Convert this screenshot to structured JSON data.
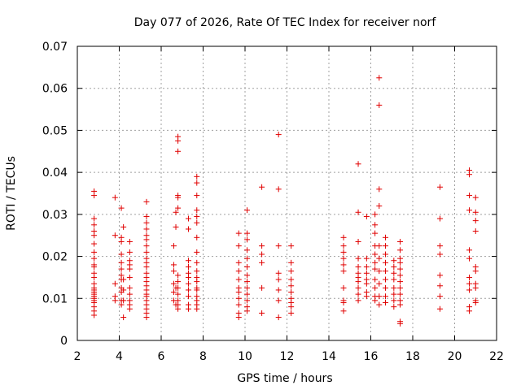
{
  "chart_data": {
    "type": "scatter",
    "title": "Day 077 of 2026, Rate Of TEC Index for receiver norf",
    "xlabel": "GPS time / hours",
    "ylabel": "ROTI / TECUs",
    "xlim": [
      2,
      22
    ],
    "ylim": [
      0,
      0.07
    ],
    "xticks": [
      2,
      4,
      6,
      8,
      10,
      12,
      14,
      16,
      18,
      20,
      22
    ],
    "yticks": [
      0,
      0.01,
      0.02,
      0.03,
      0.04,
      0.05,
      0.06,
      0.07
    ],
    "ytick_labels": [
      "0",
      "0.01",
      "0.02",
      "0.03",
      "0.04",
      "0.05",
      "0.06",
      "0.07"
    ],
    "grid": true,
    "marker": "plus",
    "color": "#e00000",
    "series": [
      {
        "name": "ROTI",
        "points": [
          [
            2.8,
            0.0355
          ],
          [
            2.8,
            0.0345
          ],
          [
            2.8,
            0.029
          ],
          [
            2.8,
            0.0275
          ],
          [
            2.8,
            0.026
          ],
          [
            2.8,
            0.025
          ],
          [
            2.8,
            0.023
          ],
          [
            2.8,
            0.021
          ],
          [
            2.8,
            0.0195
          ],
          [
            2.8,
            0.018
          ],
          [
            2.8,
            0.0175
          ],
          [
            2.8,
            0.016
          ],
          [
            2.8,
            0.015
          ],
          [
            2.8,
            0.0135
          ],
          [
            2.8,
            0.0125
          ],
          [
            2.8,
            0.012
          ],
          [
            2.8,
            0.0115
          ],
          [
            2.8,
            0.011
          ],
          [
            2.8,
            0.0105
          ],
          [
            2.8,
            0.01
          ],
          [
            2.8,
            0.0095
          ],
          [
            2.8,
            0.009
          ],
          [
            2.8,
            0.008
          ],
          [
            2.8,
            0.007
          ],
          [
            2.8,
            0.006
          ],
          [
            3.8,
            0.034
          ],
          [
            3.8,
            0.025
          ],
          [
            3.8,
            0.0135
          ],
          [
            3.8,
            0.0105
          ],
          [
            3.8,
            0.0095
          ],
          [
            4.1,
            0.0315
          ],
          [
            4.1,
            0.0245
          ],
          [
            4.1,
            0.0235
          ],
          [
            4.1,
            0.0205
          ],
          [
            4.1,
            0.0185
          ],
          [
            4.1,
            0.017
          ],
          [
            4.1,
            0.0155
          ],
          [
            4.1,
            0.0145
          ],
          [
            4.1,
            0.0125
          ],
          [
            4.1,
            0.0115
          ],
          [
            4.1,
            0.0095
          ],
          [
            4.1,
            0.0085
          ],
          [
            4.2,
            0.027
          ],
          [
            4.2,
            0.0145
          ],
          [
            4.2,
            0.012
          ],
          [
            4.2,
            0.0095
          ],
          [
            4.2,
            0.0055
          ],
          [
            4.5,
            0.0235
          ],
          [
            4.5,
            0.021
          ],
          [
            4.5,
            0.019
          ],
          [
            4.5,
            0.018
          ],
          [
            4.5,
            0.017
          ],
          [
            4.5,
            0.015
          ],
          [
            4.5,
            0.0125
          ],
          [
            4.5,
            0.011
          ],
          [
            4.5,
            0.0095
          ],
          [
            4.5,
            0.0085
          ],
          [
            4.5,
            0.0075
          ],
          [
            5.3,
            0.033
          ],
          [
            5.3,
            0.0295
          ],
          [
            5.3,
            0.028
          ],
          [
            5.3,
            0.0265
          ],
          [
            5.3,
            0.025
          ],
          [
            5.3,
            0.024
          ],
          [
            5.3,
            0.0225
          ],
          [
            5.3,
            0.021
          ],
          [
            5.3,
            0.0195
          ],
          [
            5.3,
            0.0185
          ],
          [
            5.3,
            0.0175
          ],
          [
            5.3,
            0.016
          ],
          [
            5.3,
            0.015
          ],
          [
            5.3,
            0.014
          ],
          [
            5.3,
            0.013
          ],
          [
            5.3,
            0.012
          ],
          [
            5.3,
            0.011
          ],
          [
            5.3,
            0.0105
          ],
          [
            5.3,
            0.0095
          ],
          [
            5.3,
            0.0085
          ],
          [
            5.3,
            0.0075
          ],
          [
            5.3,
            0.0065
          ],
          [
            5.3,
            0.0055
          ],
          [
            6.6,
            0.0225
          ],
          [
            6.6,
            0.018
          ],
          [
            6.6,
            0.0165
          ],
          [
            6.6,
            0.0135
          ],
          [
            6.6,
            0.0115
          ],
          [
            6.6,
            0.0095
          ],
          [
            6.7,
            0.0305
          ],
          [
            6.7,
            0.027
          ],
          [
            6.7,
            0.0125
          ],
          [
            6.7,
            0.0085
          ],
          [
            6.8,
            0.0485
          ],
          [
            6.8,
            0.0475
          ],
          [
            6.8,
            0.045
          ],
          [
            6.8,
            0.0345
          ],
          [
            6.8,
            0.034
          ],
          [
            6.8,
            0.0315
          ],
          [
            6.8,
            0.0155
          ],
          [
            6.8,
            0.014
          ],
          [
            6.8,
            0.0125
          ],
          [
            6.8,
            0.011
          ],
          [
            6.8,
            0.0095
          ],
          [
            6.8,
            0.0085
          ],
          [
            6.8,
            0.0075
          ],
          [
            7.3,
            0.029
          ],
          [
            7.3,
            0.0265
          ],
          [
            7.3,
            0.019
          ],
          [
            7.3,
            0.0175
          ],
          [
            7.3,
            0.016
          ],
          [
            7.3,
            0.015
          ],
          [
            7.3,
            0.0135
          ],
          [
            7.3,
            0.012
          ],
          [
            7.3,
            0.0105
          ],
          [
            7.3,
            0.0085
          ],
          [
            7.3,
            0.0075
          ],
          [
            7.7,
            0.039
          ],
          [
            7.7,
            0.0375
          ],
          [
            7.7,
            0.0345
          ],
          [
            7.7,
            0.031
          ],
          [
            7.7,
            0.0295
          ],
          [
            7.7,
            0.028
          ],
          [
            7.7,
            0.0245
          ],
          [
            7.7,
            0.021
          ],
          [
            7.7,
            0.0185
          ],
          [
            7.7,
            0.0165
          ],
          [
            7.7,
            0.015
          ],
          [
            7.7,
            0.014
          ],
          [
            7.7,
            0.0125
          ],
          [
            7.7,
            0.012
          ],
          [
            7.7,
            0.0105
          ],
          [
            7.7,
            0.0095
          ],
          [
            7.7,
            0.0085
          ],
          [
            7.7,
            0.0075
          ],
          [
            9.7,
            0.0255
          ],
          [
            9.7,
            0.0225
          ],
          [
            9.7,
            0.0185
          ],
          [
            9.7,
            0.0165
          ],
          [
            9.7,
            0.0145
          ],
          [
            9.7,
            0.0125
          ],
          [
            9.7,
            0.0115
          ],
          [
            9.7,
            0.01
          ],
          [
            9.7,
            0.0085
          ],
          [
            9.7,
            0.0065
          ],
          [
            9.7,
            0.0055
          ],
          [
            10.1,
            0.031
          ],
          [
            10.1,
            0.0255
          ],
          [
            10.1,
            0.024
          ],
          [
            10.1,
            0.0215
          ],
          [
            10.1,
            0.0195
          ],
          [
            10.1,
            0.0175
          ],
          [
            10.1,
            0.0155
          ],
          [
            10.1,
            0.014
          ],
          [
            10.1,
            0.0125
          ],
          [
            10.1,
            0.011
          ],
          [
            10.1,
            0.0095
          ],
          [
            10.1,
            0.008
          ],
          [
            10.1,
            0.007
          ],
          [
            10.8,
            0.0365
          ],
          [
            10.8,
            0.0225
          ],
          [
            10.8,
            0.0205
          ],
          [
            10.8,
            0.0185
          ],
          [
            10.8,
            0.0125
          ],
          [
            10.8,
            0.0065
          ],
          [
            11.6,
            0.049
          ],
          [
            11.6,
            0.036
          ],
          [
            11.6,
            0.0225
          ],
          [
            11.6,
            0.016
          ],
          [
            11.6,
            0.0145
          ],
          [
            11.6,
            0.012
          ],
          [
            11.6,
            0.0095
          ],
          [
            11.6,
            0.0055
          ],
          [
            12.2,
            0.0225
          ],
          [
            12.2,
            0.0185
          ],
          [
            12.2,
            0.0165
          ],
          [
            12.2,
            0.0145
          ],
          [
            12.2,
            0.013
          ],
          [
            12.2,
            0.0115
          ],
          [
            12.2,
            0.01
          ],
          [
            12.2,
            0.009
          ],
          [
            12.2,
            0.008
          ],
          [
            12.2,
            0.0065
          ],
          [
            14.7,
            0.0245
          ],
          [
            14.7,
            0.0225
          ],
          [
            14.7,
            0.021
          ],
          [
            14.7,
            0.0195
          ],
          [
            14.7,
            0.018
          ],
          [
            14.7,
            0.0165
          ],
          [
            14.7,
            0.0125
          ],
          [
            14.7,
            0.0095
          ],
          [
            14.7,
            0.009
          ],
          [
            14.7,
            0.007
          ],
          [
            15.4,
            0.042
          ],
          [
            15.4,
            0.0305
          ],
          [
            15.4,
            0.0235
          ],
          [
            15.4,
            0.0195
          ],
          [
            15.4,
            0.0175
          ],
          [
            15.4,
            0.016
          ],
          [
            15.4,
            0.015
          ],
          [
            15.4,
            0.014
          ],
          [
            15.4,
            0.0125
          ],
          [
            15.4,
            0.011
          ],
          [
            15.4,
            0.0095
          ],
          [
            15.8,
            0.0295
          ],
          [
            15.8,
            0.0195
          ],
          [
            15.8,
            0.0175
          ],
          [
            15.8,
            0.016
          ],
          [
            15.8,
            0.0145
          ],
          [
            15.8,
            0.0135
          ],
          [
            15.8,
            0.0115
          ],
          [
            15.8,
            0.0105
          ],
          [
            16.2,
            0.03
          ],
          [
            16.2,
            0.0275
          ],
          [
            16.2,
            0.0255
          ],
          [
            16.2,
            0.0225
          ],
          [
            16.2,
            0.0205
          ],
          [
            16.2,
            0.0185
          ],
          [
            16.2,
            0.017
          ],
          [
            16.2,
            0.0145
          ],
          [
            16.2,
            0.0125
          ],
          [
            16.2,
            0.0105
          ],
          [
            16.2,
            0.0095
          ],
          [
            16.4,
            0.0625
          ],
          [
            16.4,
            0.056
          ],
          [
            16.4,
            0.036
          ],
          [
            16.4,
            0.032
          ],
          [
            16.4,
            0.0225
          ],
          [
            16.4,
            0.0195
          ],
          [
            16.4,
            0.0165
          ],
          [
            16.4,
            0.0135
          ],
          [
            16.4,
            0.0105
          ],
          [
            16.4,
            0.0085
          ],
          [
            16.7,
            0.0245
          ],
          [
            16.7,
            0.0225
          ],
          [
            16.7,
            0.0205
          ],
          [
            16.7,
            0.0185
          ],
          [
            16.7,
            0.0165
          ],
          [
            16.7,
            0.0145
          ],
          [
            16.7,
            0.0125
          ],
          [
            16.7,
            0.0105
          ],
          [
            16.7,
            0.009
          ],
          [
            17.1,
            0.019
          ],
          [
            17.1,
            0.0175
          ],
          [
            17.1,
            0.016
          ],
          [
            17.1,
            0.0145
          ],
          [
            17.1,
            0.0125
          ],
          [
            17.1,
            0.011
          ],
          [
            17.1,
            0.0095
          ],
          [
            17.1,
            0.008
          ],
          [
            17.4,
            0.0235
          ],
          [
            17.4,
            0.0215
          ],
          [
            17.4,
            0.0195
          ],
          [
            17.4,
            0.0185
          ],
          [
            17.4,
            0.017
          ],
          [
            17.4,
            0.0155
          ],
          [
            17.4,
            0.014
          ],
          [
            17.4,
            0.0125
          ],
          [
            17.4,
            0.011
          ],
          [
            17.4,
            0.0095
          ],
          [
            17.4,
            0.0085
          ],
          [
            17.4,
            0.0045
          ],
          [
            17.4,
            0.004
          ],
          [
            19.3,
            0.0365
          ],
          [
            19.3,
            0.029
          ],
          [
            19.3,
            0.0225
          ],
          [
            19.3,
            0.0205
          ],
          [
            19.3,
            0.0155
          ],
          [
            19.3,
            0.013
          ],
          [
            19.3,
            0.0105
          ],
          [
            19.3,
            0.0075
          ],
          [
            20.7,
            0.0405
          ],
          [
            20.7,
            0.0395
          ],
          [
            20.7,
            0.0345
          ],
          [
            20.7,
            0.031
          ],
          [
            20.7,
            0.0215
          ],
          [
            20.7,
            0.0195
          ],
          [
            20.7,
            0.015
          ],
          [
            20.7,
            0.0135
          ],
          [
            20.7,
            0.012
          ],
          [
            20.7,
            0.008
          ],
          [
            20.7,
            0.007
          ],
          [
            21.0,
            0.034
          ],
          [
            21.0,
            0.0305
          ],
          [
            21.0,
            0.0285
          ],
          [
            21.0,
            0.026
          ],
          [
            21.0,
            0.0175
          ],
          [
            21.0,
            0.0165
          ],
          [
            21.0,
            0.0135
          ],
          [
            21.0,
            0.0125
          ],
          [
            21.0,
            0.0095
          ],
          [
            21.0,
            0.009
          ]
        ]
      }
    ]
  }
}
